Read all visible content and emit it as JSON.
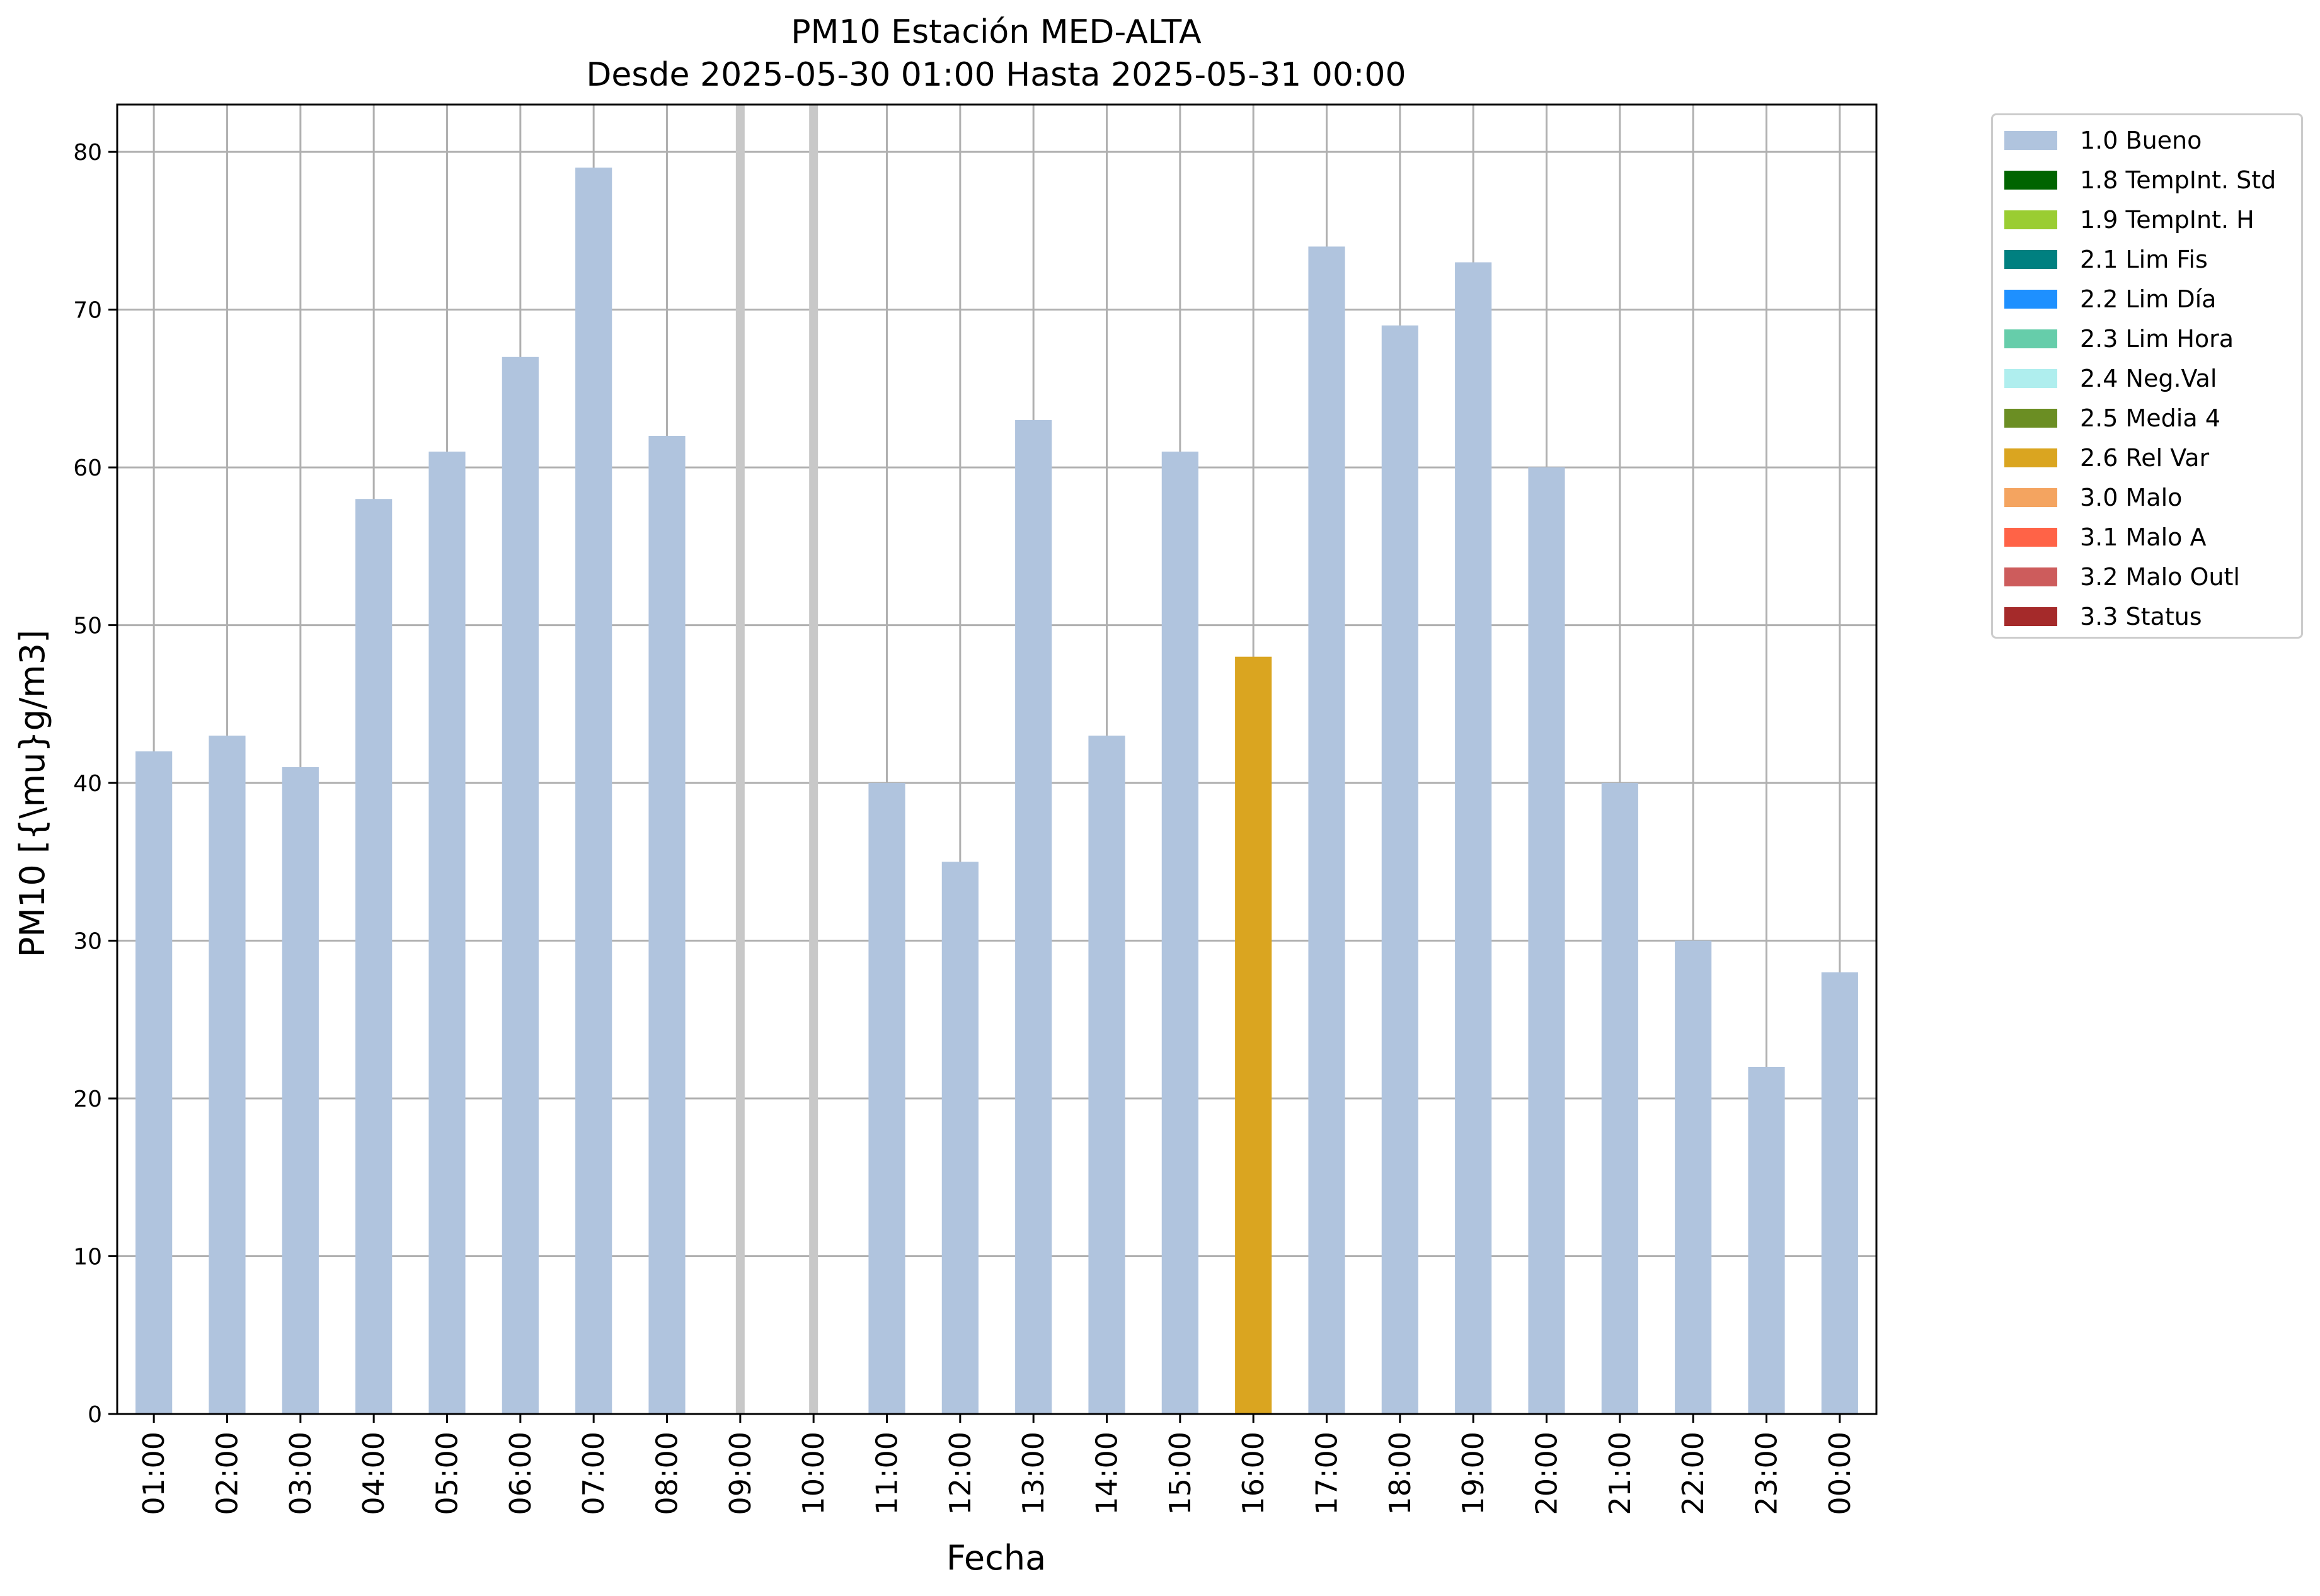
{
  "chart_data": {
    "type": "bar",
    "title": "PM10 Estación MED-ALTA",
    "subtitle": "Desde 2025-05-30 01:00 Hasta 2025-05-31 00:00",
    "xlabel": "Fecha",
    "ylabel": "PM10 [{\\mu}g/m3]",
    "ylim": [
      0,
      83
    ],
    "yticks": [
      0,
      10,
      20,
      30,
      40,
      50,
      60,
      70,
      80
    ],
    "grid": true,
    "legend_placement": "outside-top-right",
    "categories": [
      "01:00",
      "02:00",
      "03:00",
      "04:00",
      "05:00",
      "06:00",
      "07:00",
      "08:00",
      "09:00",
      "10:00",
      "11:00",
      "12:00",
      "13:00",
      "14:00",
      "15:00",
      "16:00",
      "17:00",
      "18:00",
      "19:00",
      "20:00",
      "21:00",
      "22:00",
      "23:00",
      "00:00"
    ],
    "values": [
      42,
      43,
      41,
      58,
      61,
      67,
      79,
      62,
      null,
      null,
      40,
      35,
      63,
      43,
      61,
      48,
      74,
      69,
      73,
      60,
      40,
      30,
      22,
      28
    ],
    "flags": [
      "1.0 Bueno",
      "1.0 Bueno",
      "1.0 Bueno",
      "1.0 Bueno",
      "1.0 Bueno",
      "1.0 Bueno",
      "1.0 Bueno",
      "1.0 Bueno",
      null,
      null,
      "1.0 Bueno",
      "1.0 Bueno",
      "1.0 Bueno",
      "1.0 Bueno",
      "1.0 Bueno",
      "2.6 Rel Var",
      "1.0 Bueno",
      "1.0 Bueno",
      "1.0 Bueno",
      "1.0 Bueno",
      "1.0 Bueno",
      "1.0 Bueno",
      "1.0 Bueno",
      "1.0 Bueno"
    ],
    "missing_markers": [
      "09:00",
      "10:00"
    ],
    "legend": [
      {
        "label": "1.0 Bueno",
        "color": "#b0c4de"
      },
      {
        "label": "1.8 TempInt. Std",
        "color": "#006400"
      },
      {
        "label": "1.9 TempInt. H",
        "color": "#9acd32"
      },
      {
        "label": "2.1 Lim Fis",
        "color": "#008080"
      },
      {
        "label": "2.2 Lim Día",
        "color": "#1e90ff"
      },
      {
        "label": "2.3 Lim Hora",
        "color": "#66cdaa"
      },
      {
        "label": "2.4 Neg.Val",
        "color": "#afeeee"
      },
      {
        "label": "2.5 Media 4",
        "color": "#6b8e23"
      },
      {
        "label": "2.6 Rel Var",
        "color": "#daa520"
      },
      {
        "label": "3.0 Malo",
        "color": "#f4a460"
      },
      {
        "label": "3.1 Malo A",
        "color": "#ff6347"
      },
      {
        "label": "3.2 Malo Outl",
        "color": "#cd5c5c"
      },
      {
        "label": "3.3 Status",
        "color": "#a52a2a"
      }
    ]
  }
}
